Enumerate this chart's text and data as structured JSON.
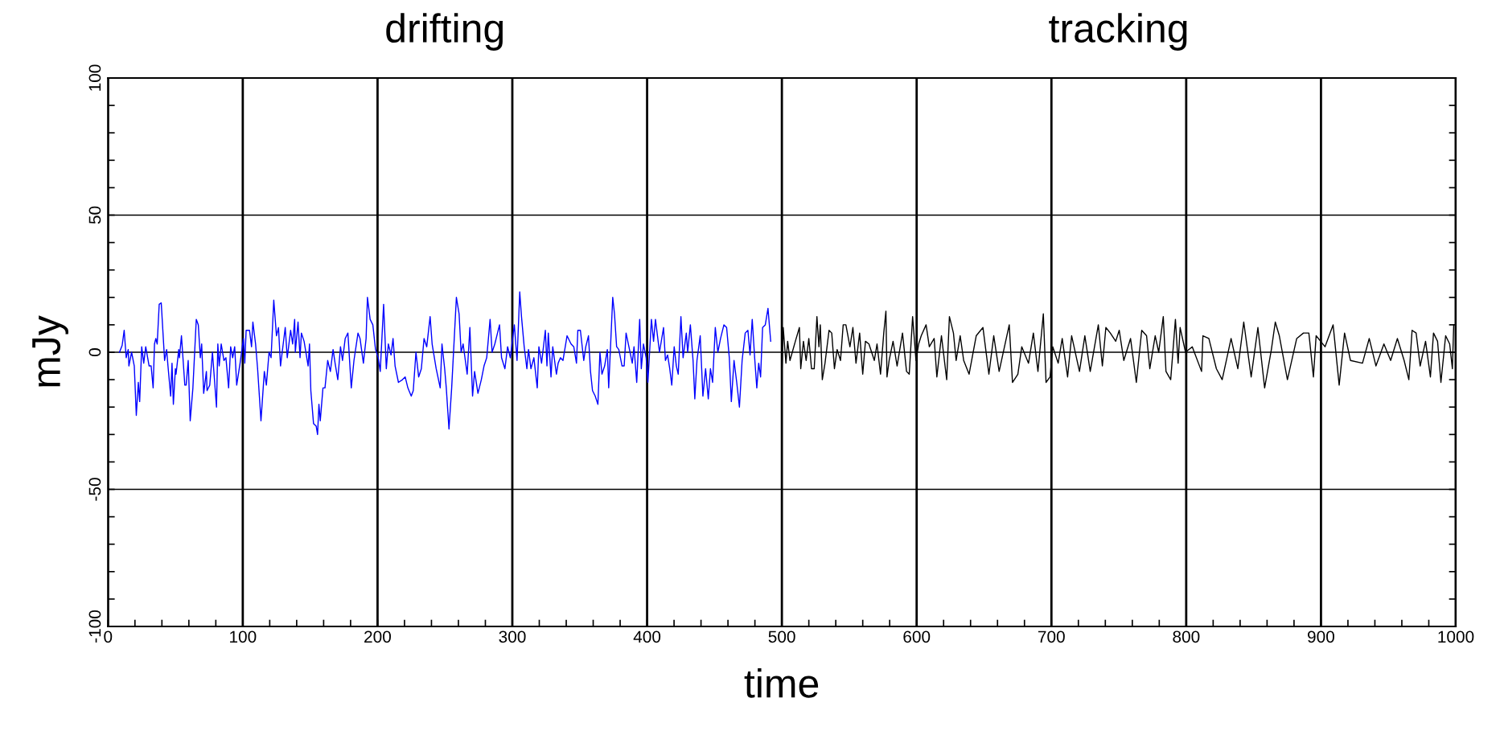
{
  "chart_data": {
    "type": "line",
    "xlabel": "time",
    "ylabel": "mJy",
    "annotations": [
      "drifting",
      "tracking"
    ],
    "xlim": [
      0,
      1000
    ],
    "ylim": [
      -100,
      100
    ],
    "xticks": [
      0,
      {
        "value": 20,
        "label": null
      },
      {
        "value": 40,
        "label": null
      },
      {
        "value": 60,
        "label": null
      },
      {
        "value": 80,
        "label": null
      },
      100,
      {
        "value": 120,
        "label": null
      },
      {
        "value": 140,
        "label": null
      },
      {
        "value": 160,
        "label": null
      },
      {
        "value": 180,
        "label": null
      },
      200,
      {
        "value": 220,
        "label": null
      },
      {
        "value": 240,
        "label": null
      },
      {
        "value": 260,
        "label": null
      },
      {
        "value": 280,
        "label": null
      },
      300,
      {
        "value": 320,
        "label": null
      },
      {
        "value": 340,
        "label": null
      },
      {
        "value": 360,
        "label": null
      },
      {
        "value": 380,
        "label": null
      },
      400,
      {
        "value": 420,
        "label": null
      },
      {
        "value": 440,
        "label": null
      },
      {
        "value": 460,
        "label": null
      },
      {
        "value": 480,
        "label": null
      },
      500,
      {
        "value": 520,
        "label": null
      },
      {
        "value": 540,
        "label": null
      },
      {
        "value": 560,
        "label": null
      },
      {
        "value": 580,
        "label": null
      },
      600,
      {
        "value": 620,
        "label": null
      },
      {
        "value": 640,
        "label": null
      },
      {
        "value": 660,
        "label": null
      },
      {
        "value": 680,
        "label": null
      },
      700,
      {
        "value": 720,
        "label": null
      },
      {
        "value": 740,
        "label": null
      },
      {
        "value": 760,
        "label": null
      },
      {
        "value": 780,
        "label": null
      },
      800,
      {
        "value": 820,
        "label": null
      },
      {
        "value": 840,
        "label": null
      },
      {
        "value": 860,
        "label": null
      },
      {
        "value": 880,
        "label": null
      },
      900,
      {
        "value": 920,
        "label": null
      },
      {
        "value": 940,
        "label": null
      },
      {
        "value": 960,
        "label": null
      },
      {
        "value": 980,
        "label": null
      },
      1000
    ],
    "yticks": [
      -100,
      {
        "value": -90,
        "label": null
      },
      {
        "value": -80,
        "label": null
      },
      {
        "value": -70,
        "label": null
      },
      {
        "value": -60,
        "label": null
      },
      -50,
      {
        "value": -40,
        "label": null
      },
      {
        "value": -30,
        "label": null
      },
      {
        "value": -20,
        "label": null
      },
      {
        "value": -10,
        "label": null
      },
      0,
      {
        "value": 10,
        "label": null
      },
      {
        "value": 20,
        "label": null
      },
      {
        "value": 30,
        "label": null
      },
      {
        "value": 40,
        "label": null
      },
      50,
      {
        "value": 60,
        "label": null
      },
      {
        "value": 70,
        "label": null
      },
      {
        "value": 80,
        "label": null
      },
      {
        "value": 90,
        "label": null
      },
      100
    ],
    "grid": true,
    "legend": false,
    "marker": "none",
    "line_style": "solid",
    "series": [
      {
        "color": "#0000ff",
        "x": [
          8.5,
          10.5,
          12,
          13.5,
          15,
          15.5,
          17.5,
          19.5,
          21,
          22.5,
          23.5,
          25,
          26.5,
          28,
          30.5,
          32,
          33.5,
          34.5,
          35.5,
          36.5,
          38,
          39.5,
          42,
          43.5,
          44.5,
          46.5,
          47.5,
          48.5,
          50,
          50.5,
          52.5,
          53,
          54.5,
          57,
          58,
          59.5,
          61,
          63,
          65.5,
          67,
          68.5,
          69.5,
          71,
          73,
          73.5,
          75.5,
          77.5,
          80.5,
          81.5,
          82.5,
          84,
          86,
          87.5,
          89.5,
          91,
          92.5,
          94,
          95.5,
          98,
          100.5,
          101.5,
          102.5,
          105,
          106.5,
          107.5,
          109.5,
          111,
          113.5,
          116,
          117.5,
          119.5,
          121,
          123,
          125,
          126.5,
          128,
          130,
          131.5,
          133,
          135.5,
          137,
          138.5,
          139,
          141,
          142.5,
          143.5,
          145.5,
          148.5,
          149.5,
          150.5,
          152.5,
          154.5,
          155.5,
          156.5,
          157.5,
          159.5,
          161,
          163,
          165,
          167,
          168.5,
          170.5,
          172.5,
          174,
          176,
          178,
          180.5,
          182.5,
          185.5,
          187,
          189.5,
          191.5,
          192.5,
          194.5,
          196.5,
          198.5,
          200.5,
          202,
          204.5,
          206.5,
          208,
          210,
          211.5,
          213,
          215.5,
          218.5,
          220.5,
          222.5,
          225,
          226.5,
          228.5,
          230.5,
          232.5,
          234.5,
          236.5,
          239,
          240.5,
          243.5,
          246.5,
          247.8,
          249.8,
          251,
          253,
          255,
          258.5,
          260.5,
          262,
          263.5,
          266.5,
          268.5,
          270.5,
          272,
          274.5,
          277,
          279,
          281,
          283.5,
          285,
          287,
          288.5,
          290.5,
          292,
          294.5,
          296.5,
          298.5,
          301.5,
          303.5,
          305.5,
          306.8,
          308.8,
          310.8,
          312,
          313.8,
          316,
          318.5,
          319.7,
          321.7,
          324.5,
          325.7,
          326.7,
          328.7,
          330,
          332.7,
          334,
          335.7,
          337.6,
          340.6,
          343.6,
          345.6,
          347.6,
          348.6,
          350.5,
          353,
          354.5,
          356.5,
          358,
          359.5,
          361.5,
          363.5,
          365,
          366.5,
          368.5,
          370.5,
          371.5,
          374.5,
          375.8,
          377.4,
          379,
          381.4,
          383,
          384.4,
          386.5,
          389,
          390.3,
          392.3,
          394.5,
          395.7,
          397.3,
          399.3,
          400.6,
          403.2,
          404.8,
          406.2,
          409.2,
          412.2,
          413.6,
          415.2,
          416.8,
          418.3,
          420.1,
          421.7,
          423.1,
          425.1,
          426.7,
          429.1,
          430.1,
          432.1,
          434.1,
          435.4,
          437,
          439.4,
          441.4,
          443.4,
          445.4,
          447,
          448.6,
          450.6,
          452.5,
          454.5,
          457,
          459,
          461,
          462.5,
          464.5,
          466.5,
          468.5,
          470.5,
          472.8,
          474.8,
          476.4,
          478,
          479.8,
          481.4,
          482.8,
          484.2,
          485.7,
          487.7,
          489.7,
          491.7
        ],
        "values": [
          0,
          2.5,
          8,
          -2,
          1,
          -5,
          0,
          -5,
          -23,
          -11,
          -18,
          2,
          -4,
          2,
          -5,
          -5,
          -13,
          3,
          5,
          3,
          17.5,
          18,
          -3,
          1,
          -5,
          -16,
          -4,
          -19,
          -6,
          -8,
          1,
          -2,
          6,
          -12,
          -12,
          -3,
          -25,
          -13,
          12,
          10,
          -2,
          3,
          -15,
          -7,
          -14,
          -12,
          0,
          -20,
          3,
          -5,
          3,
          -3,
          -2,
          -13,
          2,
          -2,
          2,
          -12,
          -4,
          5,
          -4,
          8,
          8,
          2,
          11,
          3,
          -6,
          -25,
          -7,
          -12,
          0,
          -2,
          19,
          6,
          9,
          -5,
          3,
          9,
          -2,
          8,
          3,
          12,
          0,
          11,
          -2,
          7,
          4,
          -5,
          3,
          -14,
          -26,
          -27,
          -30,
          -19,
          -25,
          -13,
          -13,
          -3,
          -7,
          1,
          -4,
          -10,
          2,
          -3,
          5,
          7,
          -13,
          -3,
          7,
          5,
          -4,
          5,
          20,
          12,
          10,
          1,
          -2,
          -7,
          17.5,
          -6,
          3,
          -1,
          5,
          -5,
          -11,
          -10,
          -9,
          -13,
          -16,
          -14,
          0,
          -9,
          -6,
          5,
          2,
          13,
          3,
          -6,
          -13,
          3,
          -6,
          -13,
          -28,
          -13,
          20,
          14,
          0,
          3,
          -8,
          9,
          -16,
          -7,
          -15,
          -10,
          -5,
          -2,
          12,
          0,
          3,
          6,
          10,
          -2,
          -6,
          2,
          -2,
          10,
          -3,
          22,
          13,
          2,
          -6,
          1,
          -6,
          -2,
          -13,
          2,
          -4,
          8,
          -5,
          7,
          -9,
          2,
          -8,
          -4,
          -2,
          -3,
          6,
          3,
          2,
          -4,
          8,
          8,
          -3,
          2,
          6,
          -7,
          -14,
          -16,
          -19,
          0,
          -8,
          -5,
          1,
          -13,
          20,
          14,
          2,
          1,
          -5,
          -5,
          7,
          2,
          -4,
          2,
          -11,
          12,
          -6,
          3,
          -2,
          -11,
          12,
          4,
          12,
          0,
          9,
          -3,
          -1,
          -6,
          -12,
          2,
          -5,
          -8,
          13,
          -2,
          7,
          0,
          10,
          -3,
          -17,
          -3,
          6,
          -16,
          -6,
          -17,
          -6,
          -11,
          9,
          0,
          5,
          10,
          9,
          -2,
          -18,
          -3,
          -11,
          -20,
          -3,
          7,
          8,
          -1,
          12,
          -2,
          -13,
          -4,
          -9,
          9,
          10,
          16,
          4
        ]
      },
      {
        "color": "#000000",
        "x": [
          500,
          501,
          503,
          504.3,
          506,
          510,
          513,
          514,
          516,
          518,
          520,
          522,
          524,
          526,
          527.5,
          528.5,
          530,
          532,
          535,
          537,
          539,
          541,
          543.5,
          545.5,
          547.5,
          550.5,
          552.7,
          555,
          557.7,
          560,
          562,
          564.6,
          568.6,
          570.6,
          573.2,
          575.6,
          577.2,
          578,
          579.6,
          582.5,
          585.5,
          589.5,
          592.5,
          594.5,
          597,
          599.5,
          601.5,
          603.4,
          607,
          609.4,
          613,
          615,
          618.4,
          622.3,
          624.3,
          627.3,
          629.3,
          632.3,
          634.9,
          638.9,
          644.2,
          649.2,
          653.6,
          657.2,
          661.2,
          668.7,
          671.1,
          675.1,
          678,
          683,
          686.6,
          690,
          694,
          696,
          699,
          701,
          705,
          708,
          712,
          715,
          720.8,
          724.8,
          728.8,
          734.8,
          737.8,
          740.4,
          743.7,
          747.7,
          750.3,
          753.7,
          758.7,
          763,
          767,
          770.6,
          773,
          777,
          779.6,
          783,
          785,
          788.5,
          792,
          794,
          795.5,
          799.5,
          804.5,
          811.4,
          812.4,
          816.8,
          822.4,
          826.7,
          833.3,
          838.3,
          842.7,
          848.2,
          853.2,
          858.2,
          863.2,
          866.1,
          869.1,
          875.1,
          882,
          887,
          891,
          894.4,
          896.4,
          903,
          909,
          913.5,
          917.5,
          921.9,
          930.8,
          935.8,
          940.8,
          946.7,
          951.7,
          956.7,
          961.7,
          965.2,
          967.6,
          970.6,
          973.6,
          977.6,
          981.2,
          983.5,
          986.5,
          989,
          992.5,
          995.5,
          997.5,
          998.5
        ],
        "values": [
          -8,
          9,
          -4,
          4,
          -3,
          4,
          9,
          -6,
          4,
          -3,
          5,
          -6,
          -6,
          13,
          2,
          10,
          -10,
          -4,
          8,
          7,
          -6,
          1,
          -3,
          10,
          10,
          2,
          9,
          -4,
          7,
          -8,
          4,
          3,
          -3,
          3,
          -8,
          7,
          15,
          -9,
          -3,
          4,
          -5,
          7,
          -7,
          -8,
          13,
          -3,
          3,
          6,
          10,
          2,
          5,
          -9,
          6,
          -10,
          13,
          7,
          -3,
          6,
          -3,
          -8,
          6,
          9,
          -8,
          6,
          -7,
          10,
          -11,
          -8,
          2,
          -4,
          7,
          -7,
          14,
          -11,
          -9,
          2,
          -4,
          5,
          -9,
          6,
          -7,
          6,
          -7,
          10,
          -5,
          9,
          7,
          4,
          8,
          -3,
          5,
          -11,
          8,
          6,
          -6,
          6,
          0,
          13,
          -7,
          -10,
          12,
          -4,
          9,
          0,
          2,
          -7,
          6,
          5,
          -6,
          -10,
          5,
          -6,
          11,
          -9,
          9,
          -13,
          1,
          11,
          6,
          -10,
          5,
          7,
          7,
          -9,
          6,
          2,
          10,
          -12,
          7,
          -3,
          -4,
          5,
          -5,
          3,
          -3,
          5,
          -3,
          -10,
          8,
          7,
          -5,
          4,
          -9,
          7,
          4,
          -11,
          6,
          3,
          -6,
          10
        ]
      }
    ]
  }
}
